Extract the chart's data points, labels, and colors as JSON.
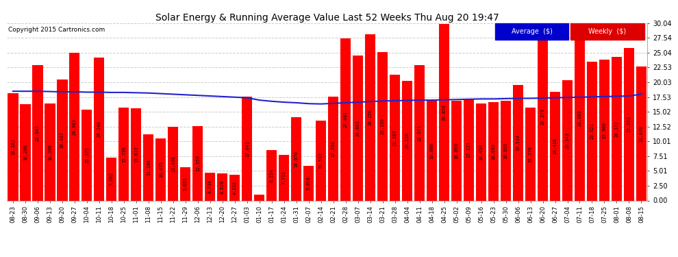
{
  "title": "Solar Energy & Running Average Value Last 52 Weeks Thu Aug 20 19:47",
  "copyright": "Copyright 2015 Cartronics.com",
  "bar_color": "#ff0000",
  "line_color": "#2222cc",
  "bg_color": "#ffffff",
  "plot_bg_color": "#ffffff",
  "grid_color": "#cccccc",
  "ylabel_right": [
    "0.00",
    "2.50",
    "5.01",
    "7.51",
    "10.01",
    "12.52",
    "15.02",
    "17.53",
    "20.03",
    "22.53",
    "25.04",
    "27.54",
    "30.04"
  ],
  "ytick_vals": [
    0.0,
    2.5,
    5.01,
    7.51,
    10.01,
    12.52,
    15.02,
    17.53,
    20.03,
    22.53,
    25.04,
    27.54,
    30.04
  ],
  "ylim": [
    0,
    30.04
  ],
  "categories": [
    "08-23",
    "08-30",
    "09-06",
    "09-13",
    "09-20",
    "09-27",
    "10-04",
    "10-11",
    "10-18",
    "10-25",
    "11-01",
    "11-08",
    "11-15",
    "11-22",
    "11-29",
    "12-06",
    "12-13",
    "12-20",
    "12-27",
    "01-03",
    "01-10",
    "01-17",
    "01-24",
    "01-31",
    "02-07",
    "02-14",
    "02-21",
    "02-28",
    "03-07",
    "03-14",
    "03-21",
    "03-28",
    "04-04",
    "04-11",
    "04-18",
    "04-25",
    "05-02",
    "05-09",
    "05-16",
    "05-23",
    "05-30",
    "06-06",
    "06-13",
    "06-20",
    "06-27",
    "07-04",
    "07-11",
    "07-18",
    "07-25",
    "08-01",
    "08-08",
    "08-15"
  ],
  "values": [
    18.182,
    16.286,
    22.945,
    16.396,
    20.487,
    24.983,
    15.375,
    24.246,
    7.262,
    15.726,
    15.627,
    11.146,
    10.475,
    12.486,
    5.655,
    12.559,
    4.734,
    4.529,
    4.312,
    17.641,
    1.006,
    8.554,
    7.712,
    14.07,
    5.856,
    13.537,
    17.598,
    27.481,
    24.603,
    28.156,
    25.15,
    21.287,
    20.226,
    22.971,
    16.88,
    29.85,
    16.899,
    17.221,
    16.45,
    16.693,
    16.95,
    19.534,
    15.779,
    28.379,
    18.418,
    20.343,
    28.089,
    23.521,
    23.9,
    24.372,
    25.852,
    22.679
  ],
  "average_line": [
    18.5,
    18.5,
    18.5,
    18.45,
    18.4,
    18.4,
    18.35,
    18.35,
    18.3,
    18.3,
    18.25,
    18.2,
    18.1,
    18.0,
    17.9,
    17.8,
    17.7,
    17.6,
    17.5,
    17.4,
    17.0,
    16.8,
    16.65,
    16.55,
    16.4,
    16.35,
    16.45,
    16.55,
    16.65,
    16.75,
    16.85,
    16.9,
    16.95,
    17.0,
    17.0,
    17.05,
    17.1,
    17.15,
    17.2,
    17.2,
    17.25,
    17.3,
    17.3,
    17.35,
    17.4,
    17.45,
    17.5,
    17.55,
    17.6,
    17.65,
    17.7,
    18.0
  ],
  "legend_avg_bg": "#0000cc",
  "legend_weekly_bg": "#dd0000"
}
